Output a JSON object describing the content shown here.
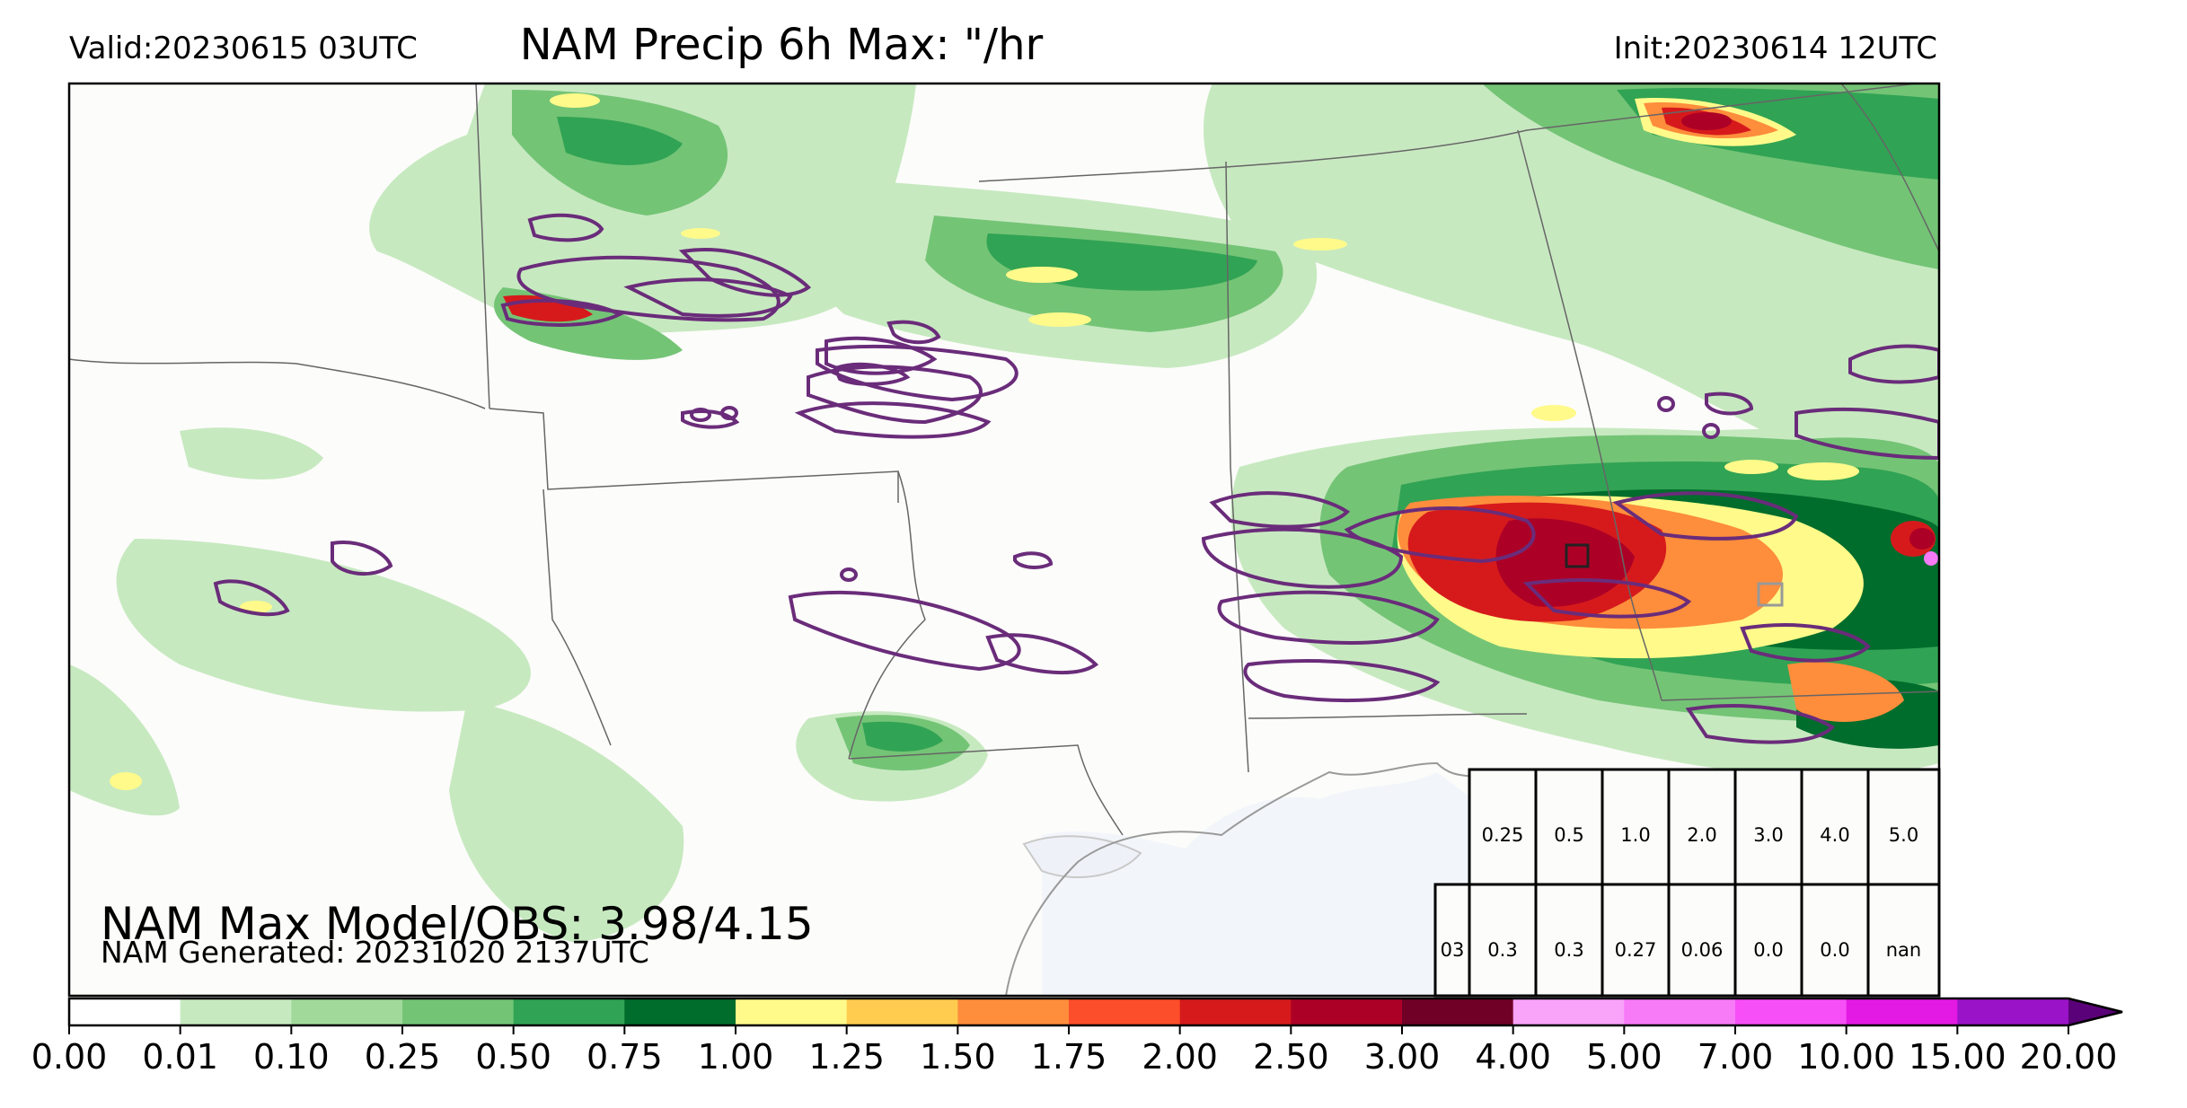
{
  "header": {
    "valid": "Valid:20230615 03UTC",
    "title": "NAM Precip 6h Max: \"/hr",
    "init": "Init:20230614 12UTC"
  },
  "stats": {
    "max_model_obs": "NAM Max Model/OBS: 3.98/4.15",
    "generated": "NAM Generated: 20231020 2137UTC"
  },
  "threshold_table": {
    "row1": [
      "",
      "0.25",
      "0.5",
      "1.0",
      "2.0",
      "3.0",
      "4.0",
      "5.0"
    ],
    "row2": [
      "03",
      "0.3",
      "0.3",
      "0.27",
      "0.06",
      "0.0",
      "0.0",
      "nan"
    ]
  },
  "colorbar": {
    "ticks": [
      "0.00",
      "0.01",
      "0.10",
      "0.25",
      "0.50",
      "0.75",
      "1.00",
      "1.25",
      "1.50",
      "1.75",
      "2.00",
      "2.50",
      "3.00",
      "4.00",
      "5.00",
      "7.00",
      "10.00",
      "15.00",
      "20.00"
    ],
    "colors": [
      "#ffffff",
      "#c7e9c0",
      "#a1d99b",
      "#74c476",
      "#31a354",
      "#006d2c",
      "#fffa8a",
      "#ffcc4f",
      "#fe8d3c",
      "#fc4e2a",
      "#d61a1c",
      "#ad0026",
      "#700026",
      "#f9a3f9",
      "#f77af7",
      "#f74ff7",
      "#e31ae3",
      "#9b13c8"
    ],
    "extend_color": "#5a0078"
  },
  "legend_colors": {
    "contour": "#6a2c7a",
    "land": "#fcfcfa",
    "water": "#f2f6fb"
  }
}
